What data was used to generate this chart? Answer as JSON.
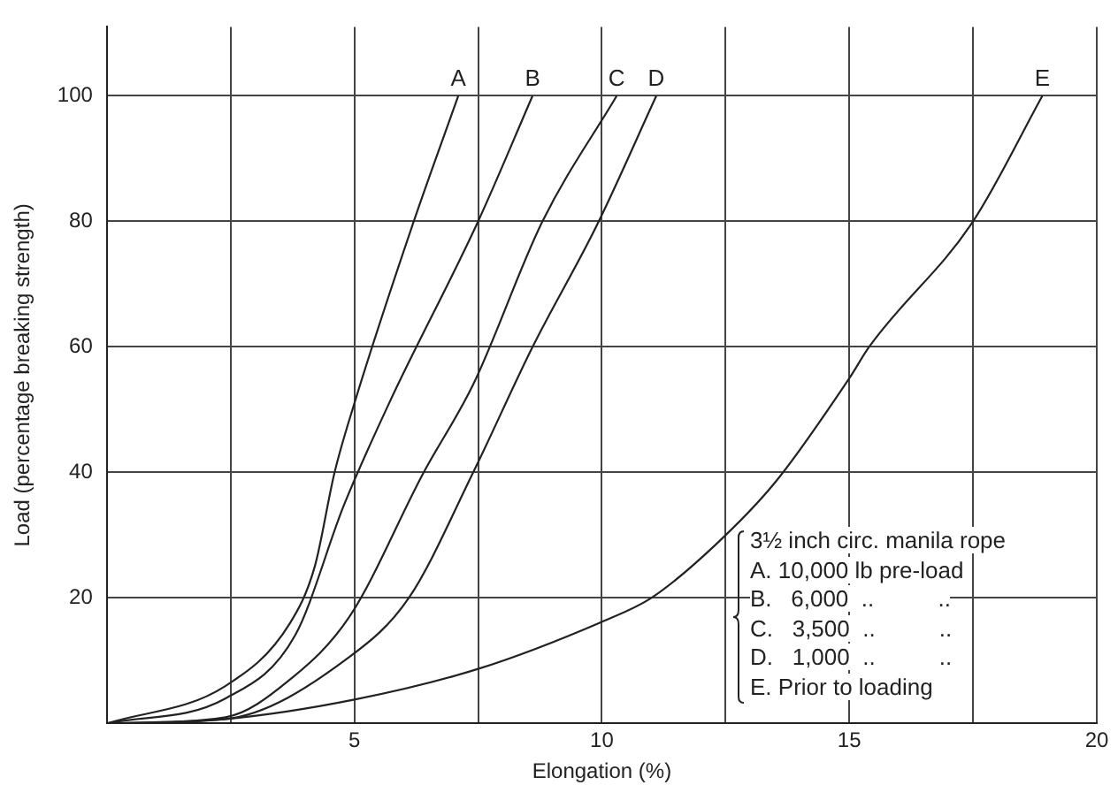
{
  "chart_data": {
    "type": "line",
    "xlabel": "Elongation (%)",
    "ylabel": "Load (percentage breaking strength)",
    "series": [
      {
        "name": "A",
        "color": "#222222",
        "x": [
          0,
          2.4,
          3.7,
          4.2,
          4.6,
          5.0,
          6.2,
          7.1
        ],
        "values": [
          0,
          6,
          16,
          25,
          40,
          51,
          80,
          100
        ]
      },
      {
        "name": "B",
        "color": "#222222",
        "x": [
          0,
          2.4,
          3.8,
          4.8,
          5.7,
          7.5,
          8.6
        ],
        "values": [
          0,
          4,
          14,
          35,
          51,
          80,
          100
        ]
      },
      {
        "name": "C",
        "color": "#222222",
        "x": [
          0,
          2.4,
          3.7,
          4.9,
          6.4,
          7.4,
          8.8,
          10.3
        ],
        "values": [
          0,
          1,
          7,
          17,
          40,
          54,
          80,
          100
        ]
      },
      {
        "name": "D",
        "color": "#222222",
        "x": [
          0,
          2.4,
          4.9,
          6.1,
          7.4,
          8.6,
          9.9,
          11.1
        ],
        "values": [
          0,
          0.7,
          10.6,
          20,
          40,
          60,
          79.4,
          100
        ]
      },
      {
        "name": "E",
        "color": "#222222",
        "x": [
          0,
          2.4,
          5,
          7.5,
          10,
          11,
          12.3,
          13.5,
          15,
          15.4,
          17.5,
          18.9
        ],
        "values": [
          0,
          0.7,
          3.8,
          8.7,
          16.2,
          20,
          28.5,
          38.4,
          55,
          60,
          80,
          100
        ]
      }
    ],
    "xlim": [
      0,
      20
    ],
    "ylim": [
      0,
      111
    ],
    "xticks": [
      {
        "value": 0,
        "label": null
      },
      {
        "value": 2.5,
        "label": null
      },
      5,
      {
        "value": 7.5,
        "label": null
      },
      10,
      {
        "value": 12.5,
        "label": null
      },
      15,
      {
        "value": 17.5,
        "label": null
      },
      20
    ],
    "yticks": [
      {
        "value": 0,
        "label": null
      },
      20,
      40,
      60,
      80,
      100
    ],
    "grid": true,
    "legend": false,
    "marker": "none",
    "line_style": "solid",
    "annotations": [
      "3½ inch circ. manila rope",
      "A. 10,000 lb pre-load",
      "B.   6,000  ..          ..",
      "C.   3,500  ..          ..",
      "D.   1,000  ..          ..",
      "E. Prior to loading"
    ]
  }
}
